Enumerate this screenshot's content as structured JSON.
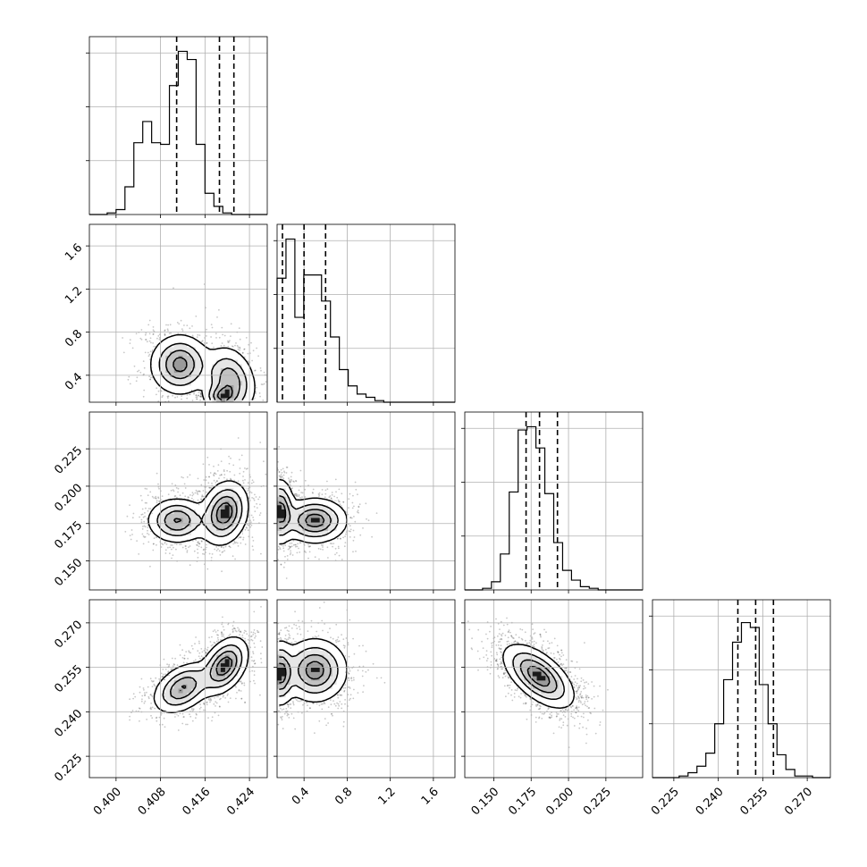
{
  "chart_data": {
    "type": "corner",
    "grid": true,
    "parameters": [
      {
        "range": [
          0.3952,
          0.4272
        ],
        "ticks": [
          "0.400",
          "0.408",
          "0.416",
          "0.424"
        ],
        "tick_values": [
          0.4,
          0.408,
          0.416,
          0.424
        ],
        "quantiles": [
          0.4109,
          0.4186,
          0.4212
        ],
        "histogram": [
          0,
          0,
          0.01,
          0.03,
          0.17,
          0.44,
          0.57,
          0.44,
          0.43,
          0.79,
          1.0,
          0.95,
          0.43,
          0.13,
          0.05,
          0.01,
          0,
          0,
          0,
          0
        ]
      },
      {
        "range": [
          0.15,
          1.8
        ],
        "ticks": [
          "0.4",
          "0.8",
          "1.2",
          "1.6"
        ],
        "tick_values": [
          0.4,
          0.8,
          1.2,
          1.6
        ],
        "quantiles": [
          0.2,
          0.4,
          0.6
        ],
        "histogram": [
          0.76,
          1.0,
          0.52,
          0.78,
          0.78,
          0.62,
          0.4,
          0.2,
          0.1,
          0.05,
          0.03,
          0.01,
          0,
          0,
          0,
          0,
          0,
          0,
          0,
          0
        ]
      },
      {
        "range": [
          0.1306,
          0.2496
        ],
        "ticks": [
          "0.150",
          "0.175",
          "0.200",
          "0.225"
        ],
        "tick_values": [
          0.15,
          0.175,
          0.2,
          0.225
        ],
        "quantiles": [
          0.1716,
          0.1806,
          0.1926
        ],
        "histogram": [
          0,
          0,
          0.01,
          0.05,
          0.22,
          0.6,
          0.98,
          1.0,
          0.87,
          0.59,
          0.29,
          0.12,
          0.06,
          0.02,
          0.01,
          0,
          0,
          0,
          0,
          0
        ]
      },
      {
        "range": [
          0.2178,
          0.2778
        ],
        "ticks": [
          "0.225",
          "0.240",
          "0.255",
          "0.270"
        ],
        "tick_values": [
          0.225,
          0.24,
          0.255,
          0.27
        ],
        "quantiles": [
          0.2466,
          0.2526,
          0.2586
        ],
        "histogram": [
          0,
          0,
          0,
          0.01,
          0.03,
          0.07,
          0.15,
          0.33,
          0.6,
          0.83,
          0.95,
          0.92,
          0.57,
          0.33,
          0.14,
          0.05,
          0.01,
          0.01,
          0,
          0
        ]
      }
    ],
    "pairs": [
      {
        "row": 1,
        "col": 0,
        "blobs": [
          {
            "cx": 0.4115,
            "cy": 0.5,
            "sx": 0.0025,
            "sy": 0.13,
            "w": 0.55,
            "rho": 0
          },
          {
            "cx": 0.4205,
            "cy": 0.35,
            "sx": 0.0022,
            "sy": 0.15,
            "w": 0.45,
            "rho": -0.2
          },
          {
            "cx": 0.419,
            "cy": 0.2,
            "sx": 0.0015,
            "sy": 0.06,
            "w": 0.4,
            "rho": 0
          }
        ]
      },
      {
        "row": 2,
        "col": 0,
        "blobs": [
          {
            "cx": 0.411,
            "cy": 0.177,
            "sx": 0.0025,
            "sy": 0.007,
            "w": 0.45,
            "rho": 0
          },
          {
            "cx": 0.4195,
            "cy": 0.182,
            "sx": 0.002,
            "sy": 0.01,
            "w": 0.55,
            "rho": 0.2
          }
        ]
      },
      {
        "row": 2,
        "col": 1,
        "blobs": [
          {
            "cx": 0.18,
            "cy": 0.183,
            "sx": 0.06,
            "sy": 0.01,
            "w": 0.5,
            "rho": 0
          },
          {
            "cx": 0.5,
            "cy": 0.177,
            "sx": 0.14,
            "sy": 0.007,
            "w": 0.5,
            "rho": 0
          }
        ]
      },
      {
        "row": 3,
        "col": 0,
        "blobs": [
          {
            "cx": 0.412,
            "cy": 0.248,
            "sx": 0.0025,
            "sy": 0.004,
            "w": 0.45,
            "rho": 0.4
          },
          {
            "cx": 0.4195,
            "cy": 0.2555,
            "sx": 0.002,
            "sy": 0.0045,
            "w": 0.55,
            "rho": 0.4
          }
        ]
      },
      {
        "row": 3,
        "col": 1,
        "blobs": [
          {
            "cx": 0.18,
            "cy": 0.253,
            "sx": 0.06,
            "sy": 0.005,
            "w": 0.5,
            "rho": 0
          },
          {
            "cx": 0.5,
            "cy": 0.254,
            "sx": 0.14,
            "sy": 0.005,
            "w": 0.5,
            "rho": 0
          }
        ]
      },
      {
        "row": 3,
        "col": 2,
        "blobs": [
          {
            "cx": 0.18,
            "cy": 0.252,
            "sx": 0.011,
            "sy": 0.005,
            "w": 1.0,
            "rho": -0.6
          }
        ]
      }
    ]
  }
}
